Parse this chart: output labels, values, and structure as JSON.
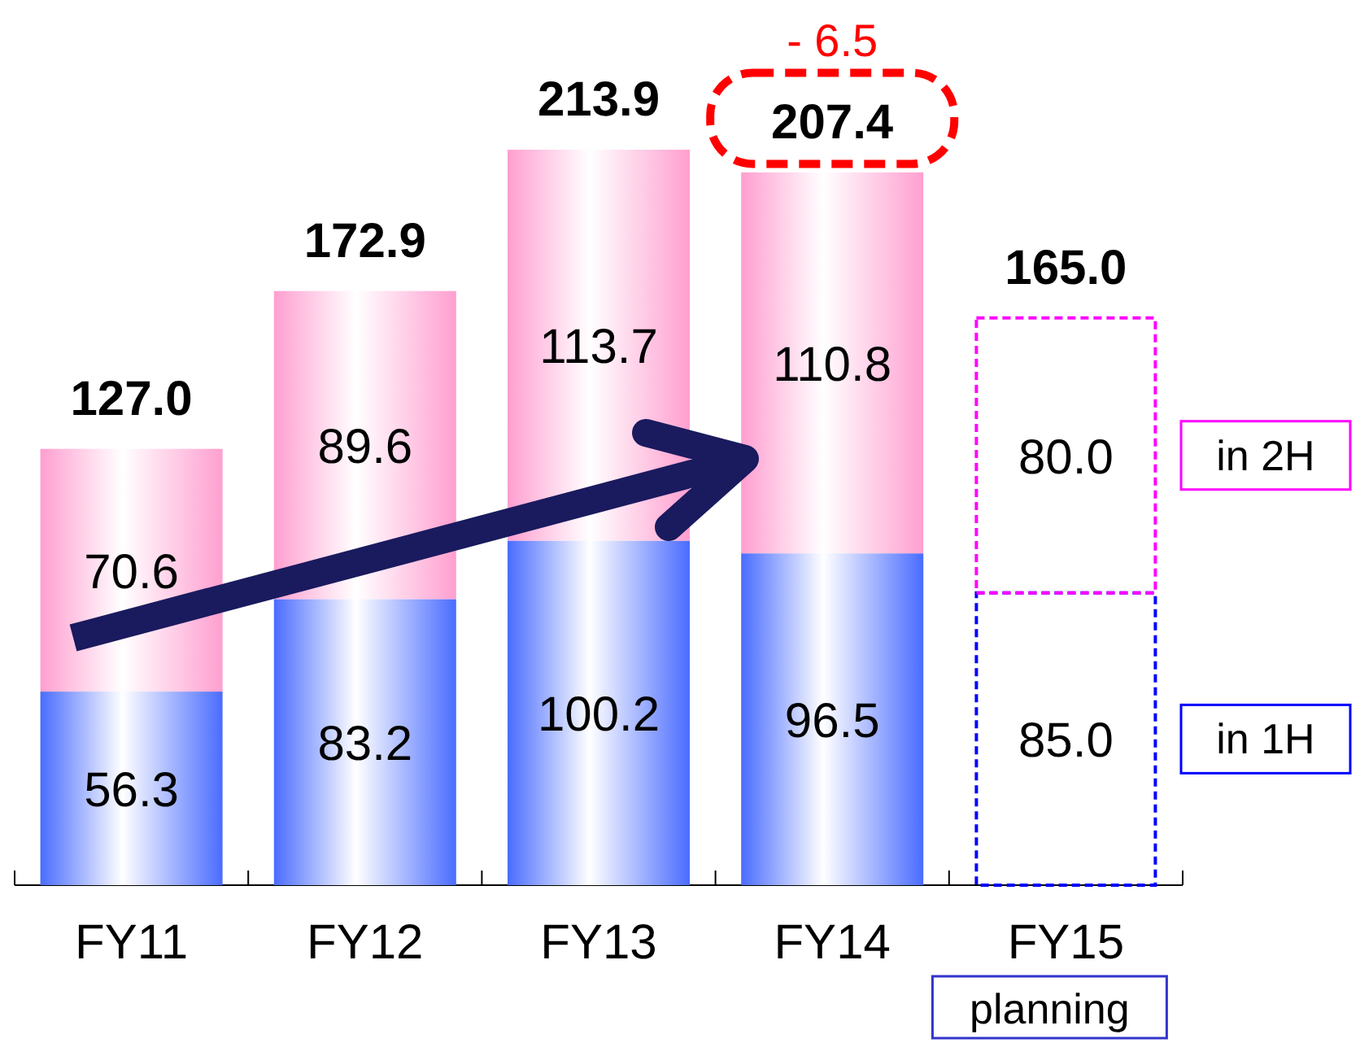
{
  "chart_data": {
    "type": "bar",
    "stacked": true,
    "categories": [
      "FY11",
      "FY12",
      "FY13",
      "FY14",
      "FY15"
    ],
    "series": [
      {
        "color": "#4a6cff",
        "values": [
          56.3,
          83.2,
          100.2,
          96.5,
          null
        ],
        "value_labels": [
          "56.3",
          "83.2",
          "100.2",
          "96.5",
          null
        ]
      },
      {
        "color": "#ff9fd0",
        "values": [
          70.6,
          89.6,
          113.7,
          110.8,
          null
        ],
        "value_labels": [
          "70.6",
          "89.6",
          "113.7",
          "110.8",
          null
        ]
      },
      {
        "name": "in 1H",
        "color": "#0000ff",
        "line_style": "dashed",
        "values": [
          null,
          null,
          null,
          null,
          85.0
        ],
        "value_labels": [
          null,
          null,
          null,
          null,
          "85.0"
        ]
      },
      {
        "name": "in 2H",
        "color": "#ff00ff",
        "line_style": "dashed",
        "values": [
          null,
          null,
          null,
          null,
          80.0
        ],
        "value_labels": [
          null,
          null,
          null,
          null,
          "80.0"
        ]
      }
    ],
    "totals": [
      "127.0",
      "172.9",
      "213.9",
      "207.4",
      "165.0"
    ],
    "legend": "right",
    "annotations": [
      {
        "text": "- 6.5",
        "x": "FY14",
        "y": 207.4
      },
      "planning"
    ]
  }
}
